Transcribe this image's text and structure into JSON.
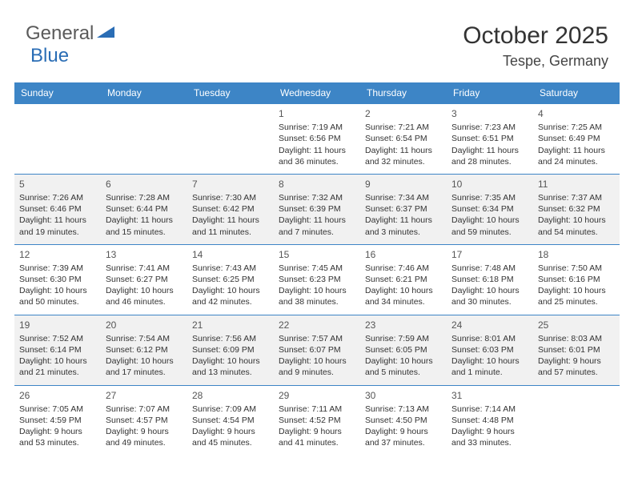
{
  "logo": {
    "text_general": "General",
    "text_blue": "Blue"
  },
  "title": {
    "month": "October 2025",
    "location": "Tespe, Germany"
  },
  "colors": {
    "header_bg": "#3d85c6",
    "header_text": "#ffffff",
    "row_alt_bg": "#f1f1f1",
    "border": "#3d85c6",
    "text": "#333333",
    "logo_gray": "#5a5a5a",
    "logo_blue": "#2a6db5"
  },
  "day_headers": [
    "Sunday",
    "Monday",
    "Tuesday",
    "Wednesday",
    "Thursday",
    "Friday",
    "Saturday"
  ],
  "weeks": [
    {
      "alt": false,
      "days": [
        null,
        null,
        null,
        {
          "n": "1",
          "sunrise": "Sunrise: 7:19 AM",
          "sunset": "Sunset: 6:56 PM",
          "daylight": "Daylight: 11 hours and 36 minutes."
        },
        {
          "n": "2",
          "sunrise": "Sunrise: 7:21 AM",
          "sunset": "Sunset: 6:54 PM",
          "daylight": "Daylight: 11 hours and 32 minutes."
        },
        {
          "n": "3",
          "sunrise": "Sunrise: 7:23 AM",
          "sunset": "Sunset: 6:51 PM",
          "daylight": "Daylight: 11 hours and 28 minutes."
        },
        {
          "n": "4",
          "sunrise": "Sunrise: 7:25 AM",
          "sunset": "Sunset: 6:49 PM",
          "daylight": "Daylight: 11 hours and 24 minutes."
        }
      ]
    },
    {
      "alt": true,
      "days": [
        {
          "n": "5",
          "sunrise": "Sunrise: 7:26 AM",
          "sunset": "Sunset: 6:46 PM",
          "daylight": "Daylight: 11 hours and 19 minutes."
        },
        {
          "n": "6",
          "sunrise": "Sunrise: 7:28 AM",
          "sunset": "Sunset: 6:44 PM",
          "daylight": "Daylight: 11 hours and 15 minutes."
        },
        {
          "n": "7",
          "sunrise": "Sunrise: 7:30 AM",
          "sunset": "Sunset: 6:42 PM",
          "daylight": "Daylight: 11 hours and 11 minutes."
        },
        {
          "n": "8",
          "sunrise": "Sunrise: 7:32 AM",
          "sunset": "Sunset: 6:39 PM",
          "daylight": "Daylight: 11 hours and 7 minutes."
        },
        {
          "n": "9",
          "sunrise": "Sunrise: 7:34 AM",
          "sunset": "Sunset: 6:37 PM",
          "daylight": "Daylight: 11 hours and 3 minutes."
        },
        {
          "n": "10",
          "sunrise": "Sunrise: 7:35 AM",
          "sunset": "Sunset: 6:34 PM",
          "daylight": "Daylight: 10 hours and 59 minutes."
        },
        {
          "n": "11",
          "sunrise": "Sunrise: 7:37 AM",
          "sunset": "Sunset: 6:32 PM",
          "daylight": "Daylight: 10 hours and 54 minutes."
        }
      ]
    },
    {
      "alt": false,
      "days": [
        {
          "n": "12",
          "sunrise": "Sunrise: 7:39 AM",
          "sunset": "Sunset: 6:30 PM",
          "daylight": "Daylight: 10 hours and 50 minutes."
        },
        {
          "n": "13",
          "sunrise": "Sunrise: 7:41 AM",
          "sunset": "Sunset: 6:27 PM",
          "daylight": "Daylight: 10 hours and 46 minutes."
        },
        {
          "n": "14",
          "sunrise": "Sunrise: 7:43 AM",
          "sunset": "Sunset: 6:25 PM",
          "daylight": "Daylight: 10 hours and 42 minutes."
        },
        {
          "n": "15",
          "sunrise": "Sunrise: 7:45 AM",
          "sunset": "Sunset: 6:23 PM",
          "daylight": "Daylight: 10 hours and 38 minutes."
        },
        {
          "n": "16",
          "sunrise": "Sunrise: 7:46 AM",
          "sunset": "Sunset: 6:21 PM",
          "daylight": "Daylight: 10 hours and 34 minutes."
        },
        {
          "n": "17",
          "sunrise": "Sunrise: 7:48 AM",
          "sunset": "Sunset: 6:18 PM",
          "daylight": "Daylight: 10 hours and 30 minutes."
        },
        {
          "n": "18",
          "sunrise": "Sunrise: 7:50 AM",
          "sunset": "Sunset: 6:16 PM",
          "daylight": "Daylight: 10 hours and 25 minutes."
        }
      ]
    },
    {
      "alt": true,
      "days": [
        {
          "n": "19",
          "sunrise": "Sunrise: 7:52 AM",
          "sunset": "Sunset: 6:14 PM",
          "daylight": "Daylight: 10 hours and 21 minutes."
        },
        {
          "n": "20",
          "sunrise": "Sunrise: 7:54 AM",
          "sunset": "Sunset: 6:12 PM",
          "daylight": "Daylight: 10 hours and 17 minutes."
        },
        {
          "n": "21",
          "sunrise": "Sunrise: 7:56 AM",
          "sunset": "Sunset: 6:09 PM",
          "daylight": "Daylight: 10 hours and 13 minutes."
        },
        {
          "n": "22",
          "sunrise": "Sunrise: 7:57 AM",
          "sunset": "Sunset: 6:07 PM",
          "daylight": "Daylight: 10 hours and 9 minutes."
        },
        {
          "n": "23",
          "sunrise": "Sunrise: 7:59 AM",
          "sunset": "Sunset: 6:05 PM",
          "daylight": "Daylight: 10 hours and 5 minutes."
        },
        {
          "n": "24",
          "sunrise": "Sunrise: 8:01 AM",
          "sunset": "Sunset: 6:03 PM",
          "daylight": "Daylight: 10 hours and 1 minute."
        },
        {
          "n": "25",
          "sunrise": "Sunrise: 8:03 AM",
          "sunset": "Sunset: 6:01 PM",
          "daylight": "Daylight: 9 hours and 57 minutes."
        }
      ]
    },
    {
      "alt": false,
      "days": [
        {
          "n": "26",
          "sunrise": "Sunrise: 7:05 AM",
          "sunset": "Sunset: 4:59 PM",
          "daylight": "Daylight: 9 hours and 53 minutes."
        },
        {
          "n": "27",
          "sunrise": "Sunrise: 7:07 AM",
          "sunset": "Sunset: 4:57 PM",
          "daylight": "Daylight: 9 hours and 49 minutes."
        },
        {
          "n": "28",
          "sunrise": "Sunrise: 7:09 AM",
          "sunset": "Sunset: 4:54 PM",
          "daylight": "Daylight: 9 hours and 45 minutes."
        },
        {
          "n": "29",
          "sunrise": "Sunrise: 7:11 AM",
          "sunset": "Sunset: 4:52 PM",
          "daylight": "Daylight: 9 hours and 41 minutes."
        },
        {
          "n": "30",
          "sunrise": "Sunrise: 7:13 AM",
          "sunset": "Sunset: 4:50 PM",
          "daylight": "Daylight: 9 hours and 37 minutes."
        },
        {
          "n": "31",
          "sunrise": "Sunrise: 7:14 AM",
          "sunset": "Sunset: 4:48 PM",
          "daylight": "Daylight: 9 hours and 33 minutes."
        },
        null
      ]
    }
  ]
}
